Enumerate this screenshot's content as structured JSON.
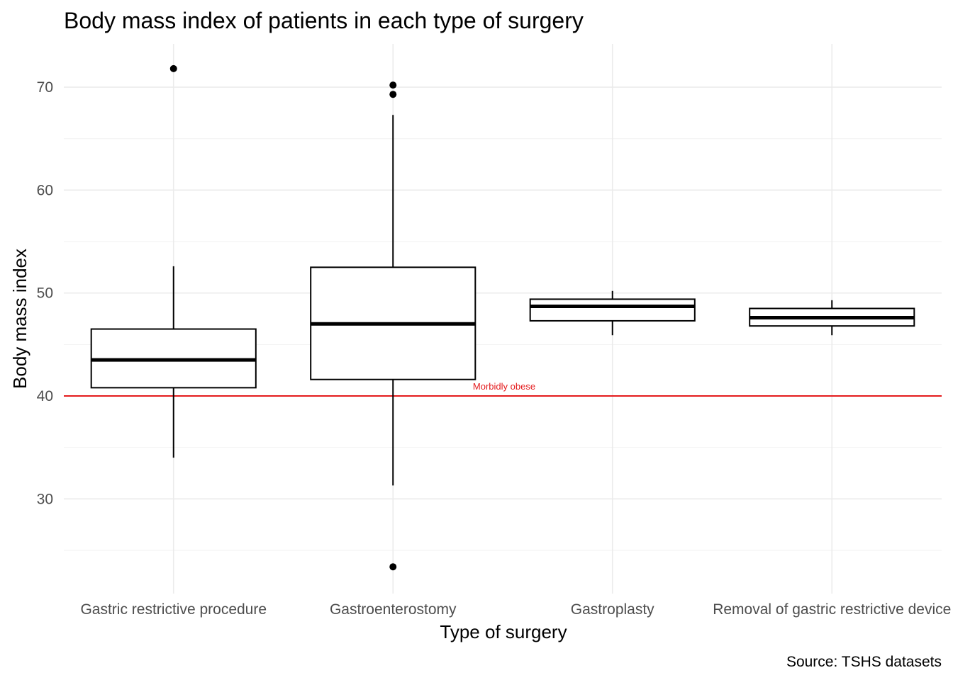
{
  "chart_data": {
    "type": "boxplot",
    "title": "Body mass index of patients in each type of surgery",
    "xlabel": "Type of surgery",
    "ylabel": "Body mass index",
    "caption": "Source: TSHS datasets",
    "ylim": [
      20.8,
      74.2
    ],
    "yticks": [
      30,
      40,
      50,
      60,
      70
    ],
    "yticks_minor": [
      25,
      35,
      45,
      55,
      65
    ],
    "grid": true,
    "reference_line": {
      "y": 40,
      "label": "Morbidly obese",
      "color": "#e41a1c"
    },
    "categories": [
      "Gastric restrictive procedure",
      "Gastroenterostomy",
      "Gastroplasty",
      "Removal of gastric restrictive device"
    ],
    "boxes": [
      {
        "category": "Gastric restrictive procedure",
        "whisker_low": 34.0,
        "q1": 40.8,
        "median": 43.5,
        "q3": 46.5,
        "whisker_high": 52.6,
        "outliers": [
          71.8
        ]
      },
      {
        "category": "Gastroenterostomy",
        "whisker_low": 31.3,
        "q1": 41.6,
        "median": 47.0,
        "q3": 52.5,
        "whisker_high": 67.3,
        "outliers": [
          70.2,
          69.3,
          23.4
        ]
      },
      {
        "category": "Gastroplasty",
        "whisker_low": 45.9,
        "q1": 47.3,
        "median": 48.7,
        "q3": 49.4,
        "whisker_high": 50.2,
        "outliers": []
      },
      {
        "category": "Removal of gastric restrictive device",
        "whisker_low": 45.9,
        "q1": 46.8,
        "median": 47.6,
        "q3": 48.5,
        "whisker_high": 49.3,
        "outliers": []
      }
    ]
  }
}
